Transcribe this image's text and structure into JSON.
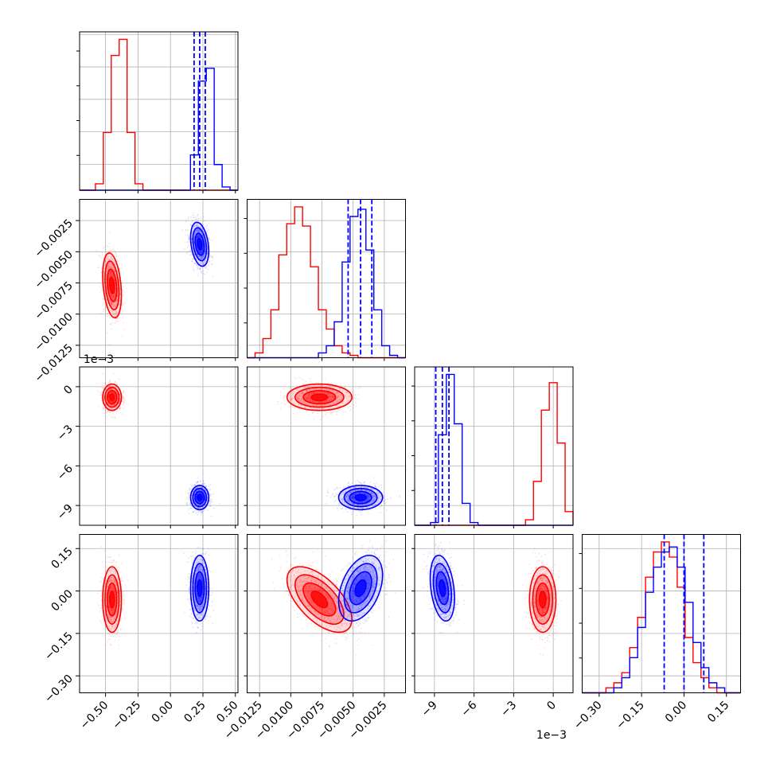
{
  "chart_data": {
    "type": "scatter",
    "layout": "corner",
    "grid": true,
    "legend": "none",
    "colors": {
      "sample_a": "#ff0000",
      "sample_b": "#0000ff"
    },
    "parameters": [
      {
        "range": [
          -0.7,
          0.52
        ],
        "ticks": [
          -0.5,
          -0.25,
          0.0,
          0.25,
          0.5
        ],
        "tick_labels": [
          "−0.50",
          "−0.25",
          "0.00",
          "0.25",
          "0.50"
        ]
      },
      {
        "range": [
          -0.0135,
          -0.0008
        ],
        "ticks": [
          -0.0125,
          -0.01,
          -0.0075,
          -0.005,
          -0.0025
        ],
        "tick_labels": [
          "−0.0125",
          "−0.0100",
          "−0.0075",
          "−0.0050",
          "−0.0025"
        ]
      },
      {
        "range": [
          -0.0105,
          0.0015
        ],
        "ticks": [
          -0.009,
          -0.006,
          -0.003,
          0.0
        ],
        "tick_labels": [
          "−9",
          "−6",
          "−3",
          "0"
        ],
        "offset_label": "1e−3"
      },
      {
        "range": [
          -0.36,
          0.2
        ],
        "ticks": [
          -0.3,
          -0.15,
          0.0,
          0.15
        ],
        "tick_labels": [
          "−0.30",
          "−0.15",
          "0.00",
          "0.15"
        ]
      }
    ],
    "series": [
      {
        "color": "#ff0000",
        "means": [
          -0.45,
          -0.0077,
          -0.0008,
          -0.03
        ],
        "sds": [
          0.036,
          0.0013,
          0.0005,
          0.058
        ],
        "correlations": [
          [
            0,
            1,
            -0.3
          ],
          [
            1,
            3,
            -0.6
          ]
        ]
      },
      {
        "color": "#0000ff",
        "means": [
          0.225,
          -0.0044,
          -0.0084,
          0.01
        ],
        "sds": [
          0.035,
          0.00088,
          0.00046,
          0.058
        ],
        "correlations": [
          [
            0,
            1,
            -0.3
          ],
          [
            1,
            3,
            0.4
          ],
          [
            2,
            3,
            -0.3
          ]
        ]
      }
    ],
    "histograms": [
      {
        "bin_range": [
          -0.7,
          0.52
        ],
        "bins": 20,
        "red": [
          0,
          0,
          2,
          18,
          42,
          47,
          18,
          2,
          0,
          0,
          0,
          0,
          0,
          0,
          0,
          0,
          0,
          0,
          0,
          0
        ],
        "blue": [
          0,
          0,
          0,
          0,
          0,
          0,
          0,
          0,
          0,
          0,
          0,
          0,
          0,
          0,
          11,
          34,
          38,
          8,
          1,
          0
        ]
      },
      {
        "bin_range": [
          -0.0135,
          -0.0008
        ],
        "bins": 20,
        "red": [
          0,
          2,
          8,
          20,
          43,
          56,
          63,
          55,
          38,
          20,
          12,
          5,
          2,
          1,
          0,
          0,
          0,
          0,
          0,
          0
        ],
        "blue": [
          0,
          0,
          0,
          0,
          0,
          0,
          0,
          0,
          0,
          2,
          5,
          15,
          40,
          59,
          62,
          45,
          20,
          5,
          1,
          0
        ]
      },
      {
        "bin_range": [
          -0.0105,
          0.0015
        ],
        "bins": 20,
        "red": [
          0,
          0,
          0,
          0,
          0,
          0,
          0,
          0,
          0,
          0,
          0,
          0,
          0,
          0,
          2,
          16,
          42,
          52,
          30,
          5
        ],
        "blue": [
          0,
          0,
          1,
          33,
          55,
          37,
          8,
          1,
          0,
          0,
          0,
          0,
          0,
          0,
          0,
          0,
          0,
          0,
          0,
          0
        ]
      },
      {
        "bin_range": [
          -0.36,
          0.2
        ],
        "bins": 20,
        "red": [
          0,
          0,
          0,
          1,
          2,
          4,
          9,
          15,
          23,
          28,
          30,
          27,
          21,
          11,
          6,
          3,
          1,
          0,
          0,
          0
        ],
        "blue": [
          0,
          0,
          0,
          0,
          1,
          3,
          7,
          13,
          20,
          25,
          28,
          29,
          25,
          18,
          10,
          5,
          2,
          1,
          0,
          0
        ]
      }
    ],
    "quantile_lines": [
      [
        0.182,
        0.225,
        0.268
      ],
      [
        -0.0054,
        -0.0044,
        -0.0035
      ],
      [
        -0.0089,
        -0.0084,
        -0.0079
      ],
      [
        -0.07,
        0.0,
        0.07
      ]
    ],
    "offset_labels": [
      "1e−3",
      "1e−3"
    ]
  }
}
